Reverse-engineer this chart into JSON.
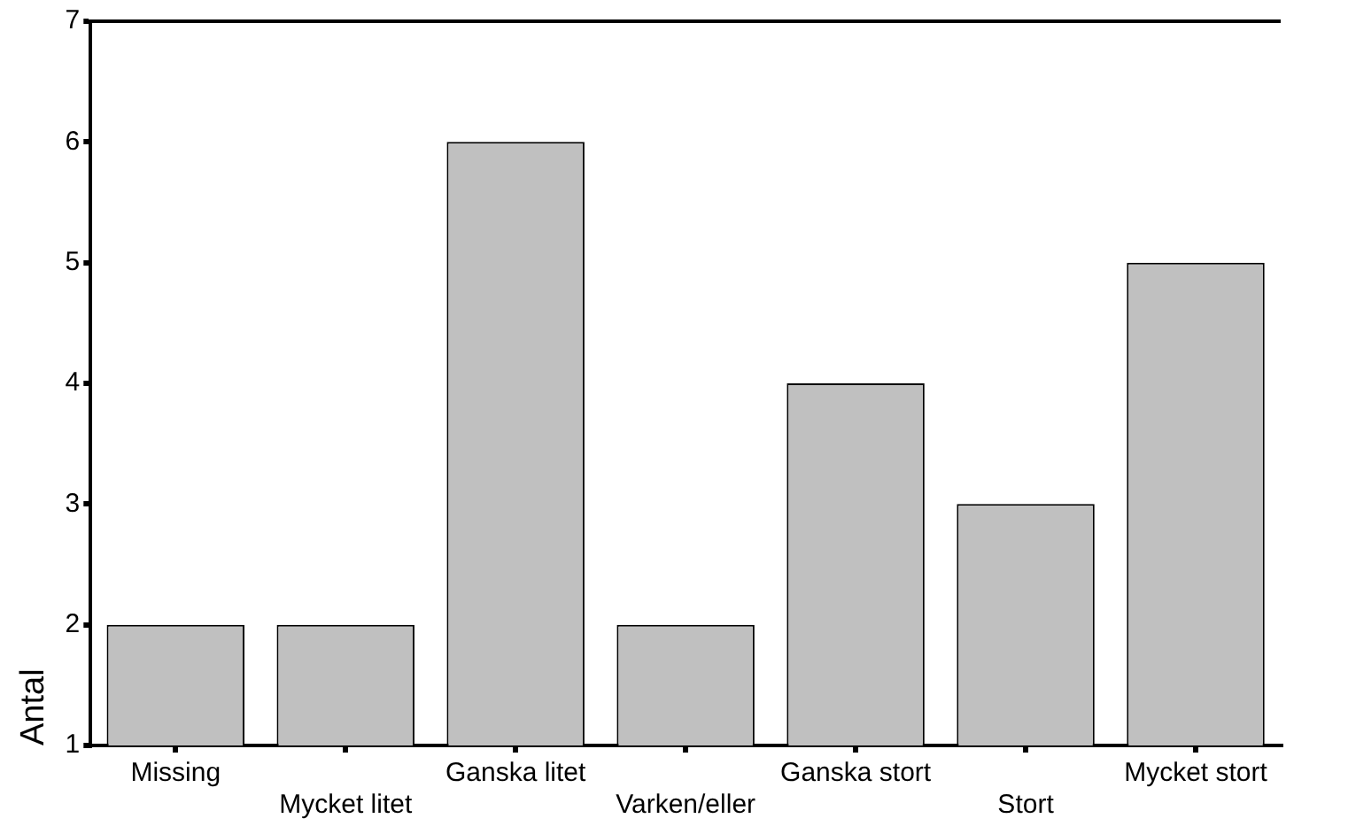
{
  "chart_data": {
    "type": "bar",
    "ylabel": "Antal",
    "categories": [
      "Missing",
      "Mycket litet",
      "Ganska litet",
      "Varken/eller",
      "Ganska stort",
      "Stort",
      "Mycket stort"
    ],
    "values": [
      2,
      2,
      6,
      2,
      4,
      3,
      5
    ],
    "color": "#c0c0c0",
    "ylim": [
      1,
      7
    ],
    "yticks": [
      1,
      2,
      3,
      4,
      5,
      6,
      7
    ],
    "grid": false,
    "legend": false
  }
}
